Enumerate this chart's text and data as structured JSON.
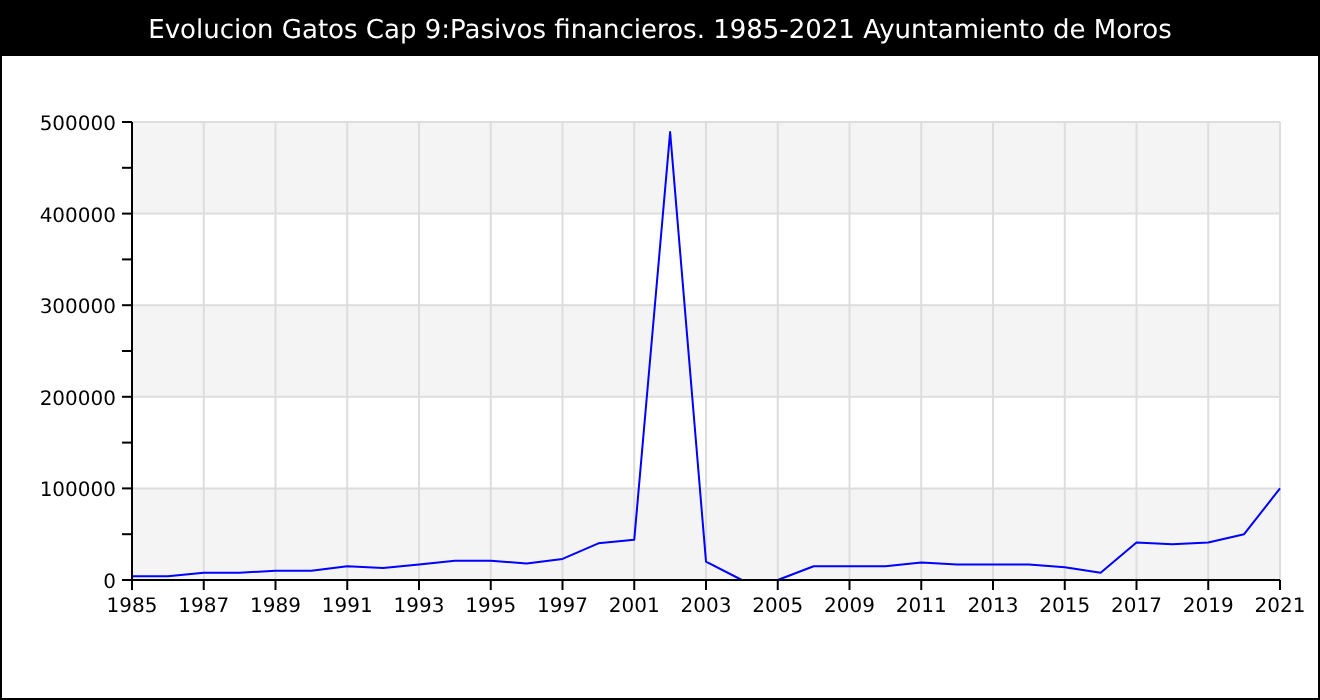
{
  "chart_data": {
    "type": "line",
    "title": "Evolucion Gatos Cap 9:Pasivos financieros. 1985-2021 Ayuntamiento de Moros",
    "categories": [
      "1985",
      null,
      "1987",
      null,
      "1989",
      null,
      "1991",
      null,
      "1993",
      null,
      "1995",
      null,
      "1997",
      null,
      "2001",
      null,
      "2003",
      null,
      "2005",
      null,
      "2009",
      null,
      "2011",
      null,
      "2013",
      null,
      "2015",
      null,
      "2017",
      null,
      "2019",
      null,
      "2021"
    ],
    "series": [
      {
        "color": "#0000ff",
        "values": [
          4000,
          4000,
          8000,
          8000,
          10000,
          10000,
          15000,
          13000,
          17000,
          21000,
          21000,
          18000,
          23000,
          40000,
          44000,
          489000,
          20000,
          0,
          0,
          15000,
          15000,
          15000,
          19000,
          17000,
          17000,
          17000,
          14000,
          8000,
          41000,
          39000,
          41000,
          50000,
          100000
        ]
      }
    ],
    "ylim": [
      0,
      500000
    ],
    "yticks": [
      0,
      {
        "value": 50000,
        "label": null
      },
      100000,
      {
        "value": 150000,
        "label": null
      },
      200000,
      {
        "value": 250000,
        "label": null
      },
      300000,
      {
        "value": 350000,
        "label": null
      },
      400000,
      {
        "value": 450000,
        "label": null
      },
      500000
    ],
    "grid": true
  }
}
